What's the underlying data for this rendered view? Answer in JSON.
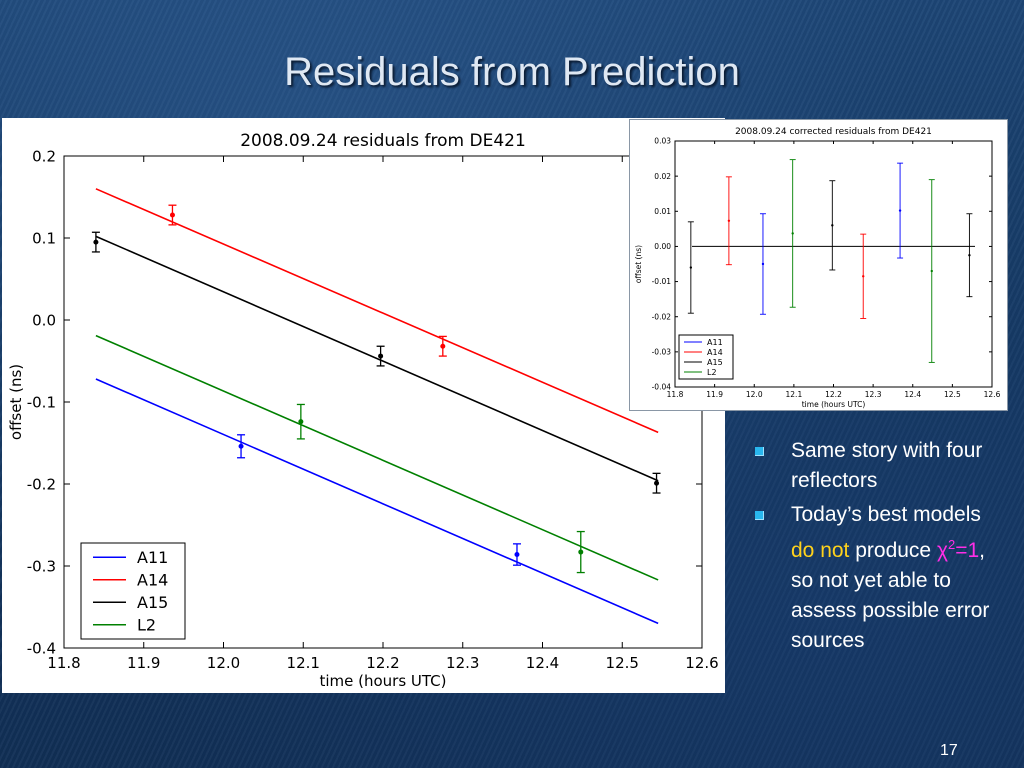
{
  "slide": {
    "title": "Residuals from Prediction",
    "page_number": "17",
    "bullets": [
      {
        "text": "Same story with four reflectors"
      },
      {
        "parts": [
          {
            "text": "Today’s best models ",
            "style": "normal"
          },
          {
            "text": "do not",
            "style": "yellow"
          },
          {
            "text": " produce ",
            "style": "normal"
          },
          {
            "text": "χ",
            "style": "magenta"
          },
          {
            "text": "2",
            "style": "magenta-sup"
          },
          {
            "text": "=1",
            "style": "magenta"
          },
          {
            "text": ", so not yet able to assess possible error sources",
            "style": "normal"
          }
        ]
      }
    ]
  },
  "chart_data": [
    {
      "type": "line",
      "title": "2008.09.24 residuals from DE421",
      "xlabel": "time (hours UTC)",
      "ylabel": "offset (ns)",
      "xlim": [
        11.8,
        12.6
      ],
      "ylim": [
        -0.4,
        0.2
      ],
      "xticks": [
        "11.8",
        "11.9",
        "12.0",
        "12.1",
        "12.2",
        "12.3",
        "12.4",
        "12.5",
        "12.6"
      ],
      "yticks": [
        "-0.4",
        "-0.3",
        "-0.2",
        "-0.1",
        "0.0",
        "0.1",
        "0.2"
      ],
      "grid": false,
      "legend_position": "bottom-left",
      "series": [
        {
          "name": "A11",
          "color": "#0000ff",
          "line": [
            [
              11.84,
              -0.072
            ],
            [
              12.545,
              -0.37
            ]
          ],
          "points": [
            {
              "x": 12.022,
              "y": -0.154,
              "err": 0.014
            },
            {
              "x": 12.368,
              "y": -0.286,
              "err": 0.013
            }
          ]
        },
        {
          "name": "A14",
          "color": "#ff0000",
          "line": [
            [
              11.84,
              0.16
            ],
            [
              12.545,
              -0.137
            ]
          ],
          "points": [
            {
              "x": 11.936,
              "y": 0.128,
              "err": 0.012
            },
            {
              "x": 12.275,
              "y": -0.032,
              "err": 0.012
            }
          ]
        },
        {
          "name": "A15",
          "color": "#000000",
          "line": [
            [
              11.84,
              0.102
            ],
            [
              12.545,
              -0.196
            ]
          ],
          "points": [
            {
              "x": 11.84,
              "y": 0.095,
              "err": 0.012
            },
            {
              "x": 12.197,
              "y": -0.044,
              "err": 0.012
            },
            {
              "x": 12.543,
              "y": -0.199,
              "err": 0.012
            }
          ]
        },
        {
          "name": "L2",
          "color": "#008000",
          "line": [
            [
              11.84,
              -0.019
            ],
            [
              12.545,
              -0.317
            ]
          ],
          "points": [
            {
              "x": 12.097,
              "y": -0.124,
              "err": 0.021
            },
            {
              "x": 12.448,
              "y": -0.283,
              "err": 0.025
            }
          ]
        }
      ]
    },
    {
      "type": "scatter",
      "title": "2008.09.24 corrected residuals from DE421",
      "xlabel": "time (hours UTC)",
      "ylabel": "offset (ns)",
      "xlim": [
        11.8,
        12.6
      ],
      "ylim": [
        -0.04,
        0.03
      ],
      "xticks": [
        "11.8",
        "11.9",
        "12.0",
        "12.1",
        "12.2",
        "12.3",
        "12.4",
        "12.5",
        "12.6"
      ],
      "yticks": [
        "-0.04",
        "-0.03",
        "-0.02",
        "-0.01",
        "0.00",
        "0.01",
        "0.02",
        "0.03"
      ],
      "grid": false,
      "legend_position": "bottom-left",
      "zero_line": true,
      "series": [
        {
          "name": "A11",
          "color": "#0000ff",
          "points": [
            {
              "x": 12.022,
              "y": -0.005,
              "err": 0.0143
            },
            {
              "x": 12.368,
              "y": 0.0102,
              "err": 0.0135
            }
          ]
        },
        {
          "name": "A14",
          "color": "#ff0000",
          "points": [
            {
              "x": 11.936,
              "y": 0.0073,
              "err": 0.0125
            },
            {
              "x": 12.275,
              "y": -0.0085,
              "err": 0.012
            }
          ]
        },
        {
          "name": "A15",
          "color": "#000000",
          "points": [
            {
              "x": 11.84,
              "y": -0.006,
              "err": 0.013
            },
            {
              "x": 12.197,
              "y": 0.006,
              "err": 0.0127
            },
            {
              "x": 12.543,
              "y": -0.0025,
              "err": 0.0118
            }
          ]
        },
        {
          "name": "L2",
          "color": "#008000",
          "points": [
            {
              "x": 12.097,
              "y": 0.0037,
              "err": 0.021
            },
            {
              "x": 12.448,
              "y": -0.007,
              "err": 0.026
            }
          ]
        }
      ]
    }
  ]
}
